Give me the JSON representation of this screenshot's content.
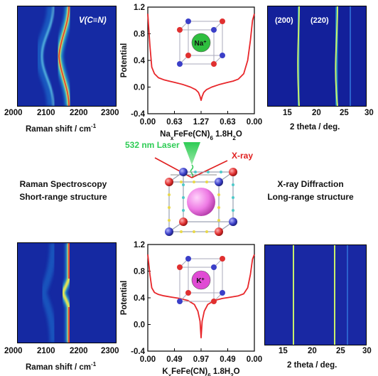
{
  "figure": {
    "raman_top": {
      "annotation": "V(C≡N)",
      "x_ticks": [
        "2000",
        "2100",
        "2200",
        "2300"
      ],
      "xlabel": "Raman shift / cm",
      "xlabel_sup": "-1"
    },
    "raman_bottom": {
      "x_ticks": [
        "2000",
        "2100",
        "2200",
        "2300"
      ],
      "xlabel": "Raman shift / cm",
      "xlabel_sup": "-1"
    },
    "xrd_top": {
      "peak_labels": [
        "(200)",
        "(220)"
      ],
      "x_ticks": [
        "15",
        "20",
        "25",
        "30"
      ],
      "xlabel": "2 theta / deg."
    },
    "xrd_bottom": {
      "x_ticks": [
        "15",
        "20",
        "25",
        "30"
      ],
      "xlabel": "2 theta / deg."
    },
    "center": {
      "laser_label": "532 nm Laser",
      "xray_label": "X-ray",
      "left_title": "Raman Spectroscopy",
      "left_subtitle": "Short-range structure",
      "right_title": "X-ray Diffraction",
      "right_subtitle": "Long-range structure"
    },
    "ion_top": "Na",
    "ion_top_sup": "+",
    "ion_bottom": "K",
    "ion_bottom_sup": "+"
  },
  "chart_data": [
    {
      "type": "line",
      "ylabel": "Potential",
      "xlabel_parts": [
        "Na",
        "x",
        "FeFe(CN)",
        "6",
        " 1.8H",
        "2",
        "O"
      ],
      "x_tick_labels": [
        "0.00",
        "0.63",
        "1.27",
        "0.63",
        "0.00"
      ],
      "y_ticks": [
        -0.4,
        0.0,
        0.4,
        0.8,
        1.2
      ],
      "y_tick_labels": [
        "-0.4",
        "0.0",
        "0.4",
        "0.8",
        "1.2"
      ],
      "ylim": [
        -0.4,
        1.2
      ],
      "xlim": [
        0,
        4
      ],
      "series": [
        {
          "color": "#e8262a",
          "x": [
            0.0,
            0.08,
            0.15,
            0.25,
            0.4,
            0.6,
            0.8,
            1.0,
            1.3,
            1.6,
            1.8,
            1.9,
            1.96,
            2.0,
            2.04,
            2.1,
            2.2,
            2.4,
            2.7,
            3.0,
            3.2,
            3.4,
            3.6,
            3.75,
            3.85,
            3.93,
            4.0
          ],
          "y": [
            1.1,
            0.62,
            0.3,
            0.2,
            0.14,
            0.11,
            0.09,
            0.07,
            0.04,
            0.0,
            -0.04,
            -0.08,
            -0.14,
            -0.2,
            -0.14,
            -0.08,
            -0.04,
            0.0,
            0.04,
            0.07,
            0.09,
            0.12,
            0.2,
            0.4,
            0.7,
            1.0,
            1.1
          ]
        }
      ]
    },
    {
      "type": "line",
      "ylabel": "Potential",
      "xlabel_parts": [
        "K",
        "x",
        "FeFe(CN)",
        "6",
        " 1.8H",
        "2",
        "O"
      ],
      "x_tick_labels": [
        "0.00",
        "0.49",
        "0.97",
        "0.49",
        "0.00"
      ],
      "y_ticks": [
        -0.4,
        0.0,
        0.4,
        0.8,
        1.2
      ],
      "y_tick_labels": [
        "-0.4",
        "0.0",
        "0.4",
        "0.8",
        "1.2"
      ],
      "ylim": [
        -0.4,
        1.2
      ],
      "xlim": [
        0,
        4
      ],
      "series": [
        {
          "color": "#e8262a",
          "x": [
            0.0,
            0.08,
            0.15,
            0.25,
            0.4,
            0.6,
            0.9,
            1.2,
            1.5,
            1.75,
            1.88,
            1.96,
            2.0,
            2.04,
            2.12,
            2.25,
            2.5,
            2.8,
            3.1,
            3.4,
            3.6,
            3.75,
            3.85,
            3.93,
            4.0
          ],
          "y": [
            1.05,
            0.75,
            0.55,
            0.48,
            0.45,
            0.43,
            0.41,
            0.39,
            0.36,
            0.3,
            0.2,
            0.05,
            -0.2,
            0.05,
            0.2,
            0.3,
            0.36,
            0.39,
            0.41,
            0.43,
            0.46,
            0.55,
            0.75,
            0.98,
            1.05
          ]
        }
      ]
    }
  ],
  "colors": {
    "heat_background": "#13209a",
    "curve": "#e8262a",
    "laser": "#33cc55",
    "xray": "#e02020",
    "sphere_blue": "#3b3fc8",
    "sphere_red": "#e03030",
    "sphere_na": "#2fbf3f",
    "sphere_k": "#e04bd4"
  }
}
